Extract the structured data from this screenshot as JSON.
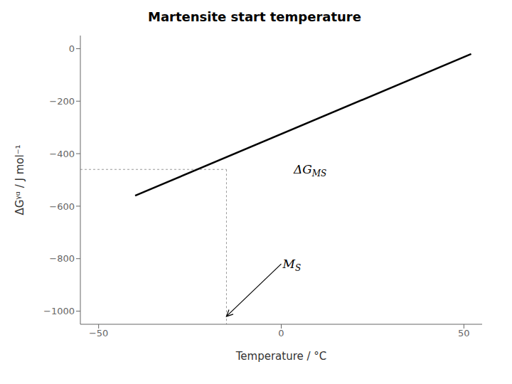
{
  "chart_data": {
    "type": "line",
    "title": "Martensite start temperature",
    "x_label": "Temperature / °C",
    "y_label": "ΔGᵞᵅ / J mol⁻¹",
    "xlim": [
      -55,
      55
    ],
    "ylim": [
      -1050,
      50
    ],
    "xticks": [
      {
        "value": -50,
        "label": "−50"
      },
      0,
      50
    ],
    "yticks": [
      0,
      {
        "value": -200,
        "label": "−200"
      },
      {
        "value": -400,
        "label": "−400"
      },
      {
        "value": -600,
        "label": "−600"
      },
      {
        "value": -800,
        "label": "−800"
      },
      {
        "value": -1000,
        "label": "−1000"
      }
    ],
    "grid": false,
    "series": [
      {
        "x": [
          -40,
          52
        ],
        "values": [
          -560,
          -20
        ],
        "color": "#000000",
        "line_style": "solid"
      }
    ],
    "guides": [
      {
        "x": [
          -55,
          -15
        ],
        "values": [
          -460,
          -460
        ],
        "color": "#999999",
        "line_style": "dashed"
      },
      {
        "x": [
          -15,
          -15
        ],
        "values": [
          -460,
          -1050
        ],
        "color": "#999999",
        "line_style": "dashed"
      }
    ],
    "annotations": [
      {
        "text": "ΔG",
        "sub": "MS",
        "x": 3,
        "y": -460
      },
      {
        "text": "M",
        "sub": "S",
        "x": 0,
        "y": -820,
        "arrow_to": {
          "x": -15,
          "y": -1020
        }
      }
    ]
  }
}
